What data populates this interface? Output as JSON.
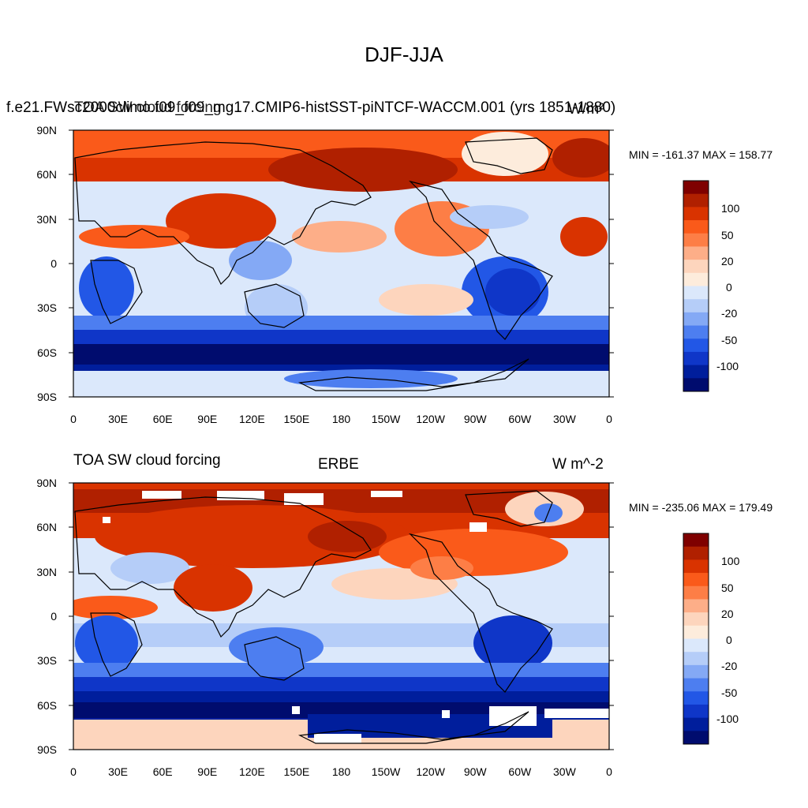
{
  "figure": {
    "title": "DJF-JJA"
  },
  "panels": [
    {
      "id": "model",
      "left_title": "TOA SW cloud forcing",
      "center_title": "f.e21.FWsc2000climo.f09_f09_mg17.CMIP6-histSST-piNTCF-WACCM.001 (yrs 1851-1880)",
      "right_title": "W/m²",
      "min_label": "MIN = -161.37",
      "max_label": "MAX = 158.77",
      "stats_text": "MIN = -161.37 MAX = 158.77"
    },
    {
      "id": "obs",
      "left_title": "TOA SW cloud forcing",
      "center_title": "ERBE",
      "right_title": "W m^-2",
      "min_label": "MIN = -235.06",
      "max_label": "MAX = 179.49",
      "stats_text": "MIN = -235.06 MAX = 179.49"
    }
  ],
  "axes": {
    "lat_labels": [
      "90N",
      "60N",
      "30N",
      "0",
      "30S",
      "60S",
      "90S"
    ],
    "lon_labels": [
      "0",
      "30E",
      "60E",
      "90E",
      "120E",
      "150E",
      "180",
      "150W",
      "120W",
      "90W",
      "60W",
      "30W",
      "0"
    ]
  },
  "colorbar": {
    "labels": [
      "100",
      "50",
      "20",
      "0",
      "-20",
      "-50",
      "-100"
    ],
    "colors": [
      "#7f0000",
      "#b02000",
      "#d93300",
      "#fa5a1a",
      "#fd7e46",
      "#fdae88",
      "#fdd5bd",
      "#fdecdc",
      "#dbe8fb",
      "#b5cdf8",
      "#84a9f5",
      "#4d7ef0",
      "#2257e6",
      "#0f36c8",
      "#001e9c",
      "#000c6e"
    ]
  },
  "chart_data": {
    "type": "heatmap",
    "title": "DJF-JJA",
    "colorbar_ticks": [
      100,
      50,
      20,
      0,
      -20,
      -50,
      -100
    ],
    "panels": [
      {
        "center_title": "f.e21.FWsc2000climo.f09_f09_mg17.CMIP6-histSST-piNTCF-WACCM.001 (yrs 1851-1880)",
        "min": -161.37,
        "max": 158.77,
        "units": "W/m²"
      },
      {
        "center_title": "ERBE",
        "min": -235.06,
        "max": 179.49,
        "units": "W m^-2"
      }
    ]
  }
}
